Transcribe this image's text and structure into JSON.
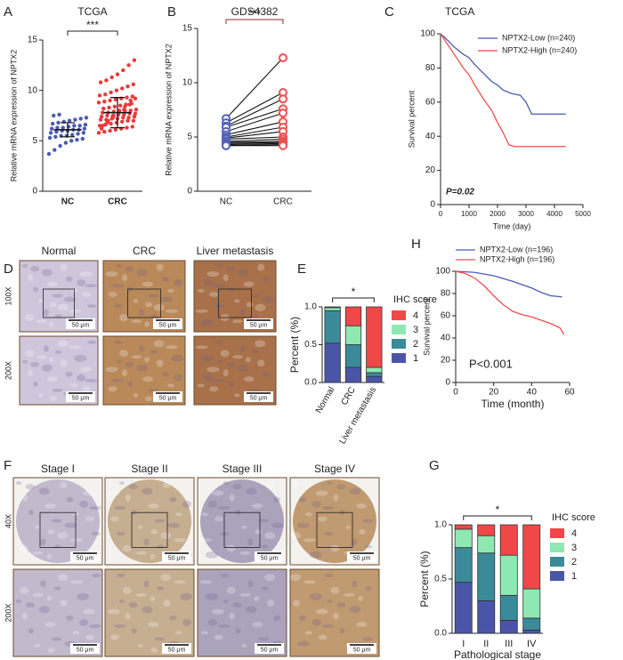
{
  "chart_data": [
    {
      "label": "A",
      "type": "dots",
      "title": "TCGA",
      "y_label": "Relative mRNA expression of NPTX2",
      "categories": [
        "NC",
        "CRC"
      ],
      "groups": [
        {
          "color": "#4a5bb0",
          "values": [
            3.7,
            4.1,
            4.5,
            4.8,
            5.0,
            5.1,
            5.2,
            5.3,
            5.4,
            5.5,
            5.5,
            5.6,
            5.7,
            5.8,
            5.8,
            5.9,
            6.0,
            6.0,
            6.1,
            6.1,
            6.2,
            6.2,
            6.3,
            6.3,
            6.4,
            6.5,
            6.5,
            6.6,
            6.7,
            6.8,
            6.9,
            7.0,
            7.1,
            7.2,
            7.3,
            7.5,
            7.6
          ]
        },
        {
          "color": "#e83a3a",
          "values": [
            5.8,
            5.9,
            6.0,
            6.1,
            6.2,
            6.3,
            6.4,
            6.5,
            6.6,
            6.7,
            6.8,
            6.9,
            7.0,
            7.0,
            7.1,
            7.1,
            7.2,
            7.2,
            7.3,
            7.3,
            7.4,
            7.4,
            7.5,
            7.5,
            7.6,
            7.6,
            7.7,
            7.7,
            7.8,
            7.8,
            7.9,
            7.9,
            8.0,
            8.0,
            8.1,
            8.2,
            8.3,
            8.4,
            8.5,
            8.6,
            8.7,
            8.8,
            8.9,
            9.0,
            9.1,
            9.2,
            9.3,
            9.4,
            9.5,
            9.6,
            9.8,
            10.0,
            10.2,
            10.4,
            10.6,
            10.8,
            11.0,
            11.3,
            11.6,
            12.0,
            12.5,
            13.0,
            6.2,
            6.8,
            7.3,
            7.7,
            8.1,
            8.6,
            9.2,
            6.5,
            7.0,
            7.5,
            8.0,
            8.4,
            9.0
          ]
        }
      ],
      "means": [
        6.1,
        7.8
      ],
      "sd": [
        0.7,
        1.5
      ],
      "ylim": [
        0,
        15
      ],
      "yticks": [
        0,
        5,
        10,
        15
      ],
      "significance": "***"
    },
    {
      "label": "B",
      "type": "paired",
      "title": "GDS4382",
      "y_label": "Relative mRNA expression of NPTX2",
      "categories": [
        "NC",
        "CRC"
      ],
      "groups": [
        {
          "color": "#5263b8",
          "values": [
            6.7,
            6.3,
            6.0,
            5.9,
            5.5,
            5.2,
            5.0,
            4.9,
            4.8,
            4.6,
            4.5,
            4.4,
            4.3,
            4.2,
            4.2
          ]
        },
        {
          "color": "#ef5050",
          "values": [
            12.3,
            9.1,
            8.5,
            7.6,
            7.2,
            6.4,
            5.9,
            5.5,
            5.0,
            4.8,
            4.6,
            4.5,
            4.4,
            4.3,
            4.2
          ]
        }
      ],
      "ylim": [
        0,
        15
      ],
      "yticks": [
        0,
        5,
        10,
        15
      ],
      "significance": "***"
    },
    {
      "label": "C",
      "type": "km",
      "title": "TCGA",
      "x_label": "Time (day)",
      "y_label": "Survival percent",
      "xlim": [
        0,
        5000
      ],
      "xticks": [
        0,
        1000,
        2000,
        3000,
        4000,
        5000
      ],
      "ylim": [
        0,
        100
      ],
      "yticks": [
        0,
        20,
        40,
        60,
        80,
        100
      ],
      "legend": "upper right",
      "annotation": "P=0.02",
      "series": [
        {
          "name": "NPTX2-Low (n=240)",
          "color": "#4a5bb0",
          "x": [
            0,
            200,
            500,
            800,
            1000,
            1200,
            1500,
            1800,
            2000,
            2200,
            2500,
            2800,
            3000,
            3200,
            4400
          ],
          "values": [
            100,
            97,
            92,
            88,
            86,
            82,
            77,
            72,
            70,
            67,
            65,
            64,
            60,
            53,
            53
          ]
        },
        {
          "name": "NPTX2-High (n=240)",
          "color": "#ef4e4e",
          "x": [
            0,
            200,
            400,
            600,
            800,
            1000,
            1200,
            1500,
            1800,
            2000,
            2200,
            2400,
            2600,
            4400
          ],
          "values": [
            100,
            95,
            90,
            85,
            80,
            76,
            70,
            62,
            55,
            48,
            42,
            35,
            34,
            34
          ]
        }
      ]
    },
    {
      "label": "E",
      "type": "stacked",
      "y_label": "Percent (%)",
      "categories": [
        "Normal",
        "CRC",
        "Liver metastasis"
      ],
      "ylim": [
        0,
        1
      ],
      "yticks": [
        {
          "value": 0,
          "label": "0.0"
        },
        {
          "value": 0.5,
          "label": "0.5"
        },
        {
          "value": 1,
          "label": "1.0"
        }
      ],
      "legend_title": "IHC score",
      "significance": "*",
      "series": [
        {
          "name": "1",
          "color": "#4b55a8",
          "values": [
            0.52,
            0.2,
            0.08
          ]
        },
        {
          "name": "2",
          "color": "#3a8a9a",
          "values": [
            0.43,
            0.3,
            0.05
          ]
        },
        {
          "name": "3",
          "color": "#8ee8b2",
          "values": [
            0.04,
            0.25,
            0.07
          ]
        },
        {
          "name": "4",
          "color": "#f04848",
          "values": [
            0.01,
            0.25,
            0.8
          ]
        }
      ]
    },
    {
      "label": "H",
      "type": "km",
      "x_label": "Time (month)",
      "y_label": "Survival percent",
      "xlim": [
        0,
        60
      ],
      "xticks": [
        0,
        20,
        40,
        60
      ],
      "ylim": [
        0,
        100
      ],
      "yticks": [
        0,
        20,
        40,
        60,
        80,
        100
      ],
      "legend": "top",
      "annotation": "P<0.001",
      "series": [
        {
          "name": "NPTX2-Low (n=196)",
          "color": "#4a5bb0",
          "x": [
            0,
            10,
            20,
            30,
            40,
            45,
            50,
            56
          ],
          "values": [
            100,
            99,
            96,
            91,
            85,
            81,
            78,
            77
          ]
        },
        {
          "name": "NPTX2-High (n=196)",
          "color": "#ef4e4e",
          "x": [
            0,
            5,
            10,
            15,
            20,
            25,
            30,
            35,
            40,
            45,
            50,
            55,
            57
          ],
          "values": [
            100,
            98,
            94,
            87,
            78,
            70,
            64,
            61,
            59,
            56,
            53,
            49,
            43
          ]
        }
      ]
    },
    {
      "label": "G",
      "type": "stacked",
      "y_label": "Percent (%)",
      "x_label": "Pathological stage",
      "categories": [
        "I",
        "II",
        "III",
        "IV"
      ],
      "ylim": [
        0,
        1
      ],
      "yticks": [
        {
          "value": 0,
          "label": "0.0"
        },
        {
          "value": 0.5,
          "label": "0.5"
        },
        {
          "value": 1,
          "label": "1.0"
        }
      ],
      "legend_title": "IHC score",
      "significance": "*",
      "series": [
        {
          "name": "1",
          "color": "#4b55a8",
          "values": [
            0.47,
            0.3,
            0.12,
            0.03
          ]
        },
        {
          "name": "2",
          "color": "#3a8a9a",
          "values": [
            0.32,
            0.44,
            0.23,
            0.11
          ]
        },
        {
          "name": "3",
          "color": "#8ee8b2",
          "values": [
            0.17,
            0.16,
            0.37,
            0.27
          ]
        },
        {
          "name": "4",
          "color": "#f04848",
          "values": [
            0.04,
            0.1,
            0.28,
            0.59
          ]
        }
      ]
    }
  ],
  "images": [
    {
      "label": "D",
      "columns": [
        "Normal",
        "CRC",
        "Liver metastasis"
      ],
      "rows": [
        "100X",
        "200X"
      ],
      "scale_bar": "50 μm"
    },
    {
      "label": "F",
      "columns": [
        "Stage I",
        "Stage II",
        "Stage III",
        "Stage IV"
      ],
      "rows": [
        "40X",
        "200X"
      ],
      "scale_bar": "50 μm"
    }
  ]
}
